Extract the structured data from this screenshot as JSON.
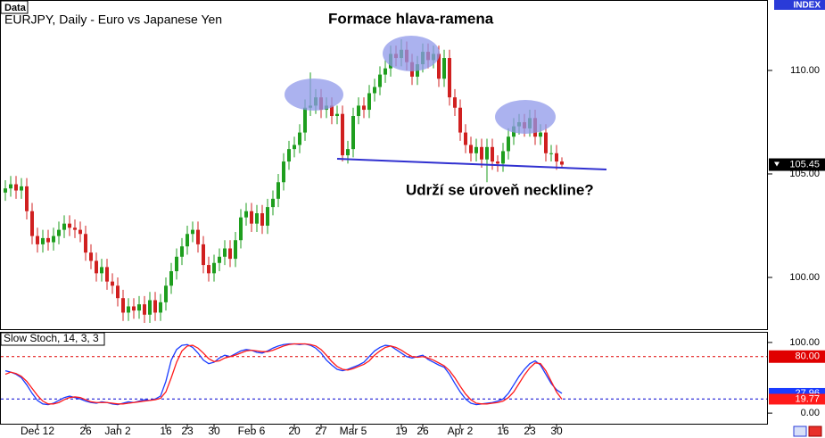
{
  "chart_data": [
    {
      "type": "candlestick",
      "panel_label": "Data",
      "title": "EURJPY, Daily - Euro vs Japanese Yen",
      "axis_badge": "INDEX",
      "annotations": [
        "Formace hlava-ramena",
        "Udrží se úroveň neckline?"
      ],
      "up_color": "#1e9e1e",
      "down_color": "#d02020",
      "ylim": [
        97.5,
        113.36
      ],
      "yticks": [
        {
          "value": 110,
          "label": "110.00"
        },
        {
          "value": 105,
          "label": "105.00"
        },
        {
          "value": 100,
          "label": "100.00"
        }
      ],
      "xticks": [
        {
          "value": 6,
          "label": "Dec 12"
        },
        {
          "value": 15,
          "label": "26"
        },
        {
          "value": 21,
          "label": "Jan 2"
        },
        {
          "value": 30,
          "label": "16"
        },
        {
          "value": 34,
          "label": "23"
        },
        {
          "value": 39,
          "label": "30"
        },
        {
          "value": 46,
          "label": "Feb 6"
        },
        {
          "value": 54,
          "label": "20"
        },
        {
          "value": 59,
          "label": "27"
        },
        {
          "value": 65,
          "label": "Mar 5"
        },
        {
          "value": 74,
          "label": "19"
        },
        {
          "value": 78,
          "label": "26"
        },
        {
          "value": 85,
          "label": "Apr 2"
        },
        {
          "value": 93,
          "label": "16"
        },
        {
          "value": 98,
          "label": "23"
        },
        {
          "value": 103,
          "label": "30"
        }
      ],
      "open": [
        104.1,
        104.3,
        104.5,
        104.2,
        104.4,
        103.2,
        102.0,
        101.6,
        101.9,
        101.7,
        102.0,
        102.3,
        102.6,
        102.4,
        102.3,
        102.1,
        101.2,
        100.8,
        100.2,
        100.5,
        99.8,
        99.6,
        99.0,
        98.3,
        98.6,
        98.4,
        98.7,
        98.2,
        98.9,
        98.3,
        98.8,
        99.6,
        100.3,
        101.0,
        101.5,
        102.1,
        102.3,
        101.6,
        100.6,
        100.2,
        100.7,
        101.0,
        101.4,
        100.9,
        101.8,
        102.9,
        103.2,
        102.6,
        103.1,
        102.5,
        103.4,
        103.8,
        104.6,
        105.6,
        106.2,
        106.4,
        107.0,
        108.2,
        108.3,
        108.7,
        108.1,
        108.3,
        107.8,
        107.9,
        105.9,
        106.2,
        107.8,
        108.3,
        108.1,
        108.9,
        109.2,
        109.8,
        110.1,
        110.8,
        110.6,
        111.0,
        110.4,
        109.7,
        110.3,
        110.9,
        110.5,
        110.8,
        109.6,
        110.6,
        108.7,
        108.2,
        107.0,
        106.4,
        106.0,
        106.3,
        105.7,
        106.3,
        105.6,
        105.5,
        106.1,
        106.8,
        107.3,
        107.5,
        107.2,
        107.7,
        106.8,
        107.0,
        106.0,
        106.0,
        105.6
      ],
      "high": [
        104.7,
        104.9,
        104.9,
        104.8,
        104.8,
        103.6,
        102.4,
        102.3,
        102.3,
        102.4,
        102.7,
        103.0,
        103.0,
        102.8,
        102.7,
        102.5,
        101.6,
        101.2,
        100.9,
        100.9,
        100.2,
        100.0,
        99.4,
        99.0,
        99.0,
        99.1,
        99.1,
        99.3,
        99.3,
        99.2,
        100.0,
        100.7,
        101.4,
        101.9,
        102.5,
        102.7,
        102.7,
        102.0,
        101.0,
        101.1,
        101.4,
        101.8,
        101.8,
        102.2,
        103.3,
        103.6,
        103.6,
        103.5,
        103.5,
        103.8,
        104.2,
        105.0,
        106.0,
        106.6,
        106.8,
        107.4,
        108.6,
        109.9,
        109.1,
        109.1,
        108.7,
        108.7,
        108.3,
        108.3,
        106.6,
        108.2,
        108.7,
        108.7,
        109.3,
        109.6,
        110.2,
        110.5,
        111.2,
        111.2,
        111.5,
        111.4,
        110.8,
        110.7,
        111.3,
        111.3,
        111.2,
        111.2,
        111.0,
        111.0,
        109.1,
        108.6,
        107.4,
        106.8,
        106.7,
        106.7,
        106.7,
        106.7,
        105.9,
        106.5,
        107.2,
        107.7,
        107.9,
        107.9,
        108.1,
        108.1,
        107.4,
        107.4,
        106.4,
        106.4,
        105.8
      ],
      "low": [
        103.7,
        103.9,
        103.8,
        103.8,
        102.8,
        101.6,
        101.2,
        101.2,
        101.3,
        101.3,
        101.6,
        101.9,
        102.0,
        101.9,
        101.7,
        100.8,
        100.4,
        99.8,
        99.8,
        99.4,
        99.2,
        98.6,
        97.9,
        97.9,
        98.0,
        98.0,
        97.8,
        97.8,
        97.9,
        97.9,
        98.4,
        99.2,
        99.9,
        100.6,
        101.1,
        101.7,
        101.2,
        100.2,
        99.8,
        99.8,
        100.3,
        100.6,
        100.5,
        100.5,
        101.4,
        102.5,
        102.2,
        102.2,
        102.1,
        102.1,
        103.0,
        103.4,
        104.2,
        105.2,
        105.8,
        106.0,
        106.6,
        107.8,
        107.9,
        107.7,
        107.7,
        107.4,
        107.4,
        105.6,
        105.5,
        105.8,
        107.4,
        107.7,
        107.7,
        108.5,
        108.8,
        109.4,
        109.7,
        110.2,
        110.2,
        110.0,
        109.3,
        109.3,
        109.9,
        110.1,
        110.1,
        109.2,
        109.2,
        108.3,
        107.8,
        106.6,
        106.0,
        105.6,
        105.6,
        105.3,
        104.6,
        105.2,
        105.1,
        105.1,
        105.7,
        106.4,
        106.9,
        106.8,
        106.8,
        106.4,
        106.4,
        105.6,
        105.6,
        105.2,
        105.3
      ],
      "close": [
        104.3,
        104.5,
        104.2,
        104.4,
        103.2,
        102.0,
        101.6,
        101.9,
        101.7,
        102.0,
        102.3,
        102.6,
        102.4,
        102.3,
        102.1,
        101.2,
        100.8,
        100.2,
        100.5,
        99.8,
        99.6,
        99.0,
        98.3,
        98.6,
        98.4,
        98.7,
        98.2,
        98.9,
        98.3,
        98.8,
        99.6,
        100.3,
        101.0,
        101.5,
        102.1,
        102.3,
        101.6,
        100.6,
        100.2,
        100.7,
        101.0,
        101.4,
        100.9,
        101.8,
        102.9,
        103.2,
        102.6,
        103.1,
        102.5,
        103.4,
        103.8,
        104.6,
        105.6,
        106.2,
        106.4,
        107.0,
        108.2,
        108.3,
        108.7,
        108.1,
        108.3,
        107.8,
        107.9,
        105.9,
        106.2,
        107.8,
        108.3,
        108.1,
        108.9,
        109.2,
        109.8,
        110.1,
        110.8,
        110.6,
        111.0,
        110.4,
        109.7,
        110.3,
        110.9,
        110.5,
        110.8,
        109.6,
        110.6,
        108.7,
        108.2,
        107.0,
        106.4,
        106.0,
        106.3,
        105.7,
        106.3,
        105.6,
        105.5,
        106.1,
        106.8,
        107.3,
        107.5,
        107.2,
        107.7,
        106.8,
        107.0,
        106.0,
        106.0,
        105.6,
        105.45
      ]
    },
    {
      "type": "line",
      "title": "Slow Stoch, 14, 3, 3",
      "ylim": [
        -15,
        113.75
      ],
      "yticks": [
        {
          "value": 100,
          "label": "100.00"
        },
        {
          "value": 0,
          "label": "0.00"
        }
      ],
      "levels": [
        {
          "value": 80,
          "label": "80.00",
          "color": "#e00000"
        },
        {
          "value": 20,
          "color": "#0000d0"
        }
      ],
      "series": [
        {
          "color": "#1a3cff",
          "values": [
            60,
            58,
            55,
            50,
            40,
            28,
            18,
            13,
            12,
            14,
            18,
            22,
            24,
            22,
            20,
            17,
            15,
            14,
            16,
            15,
            13,
            12,
            14,
            16,
            15,
            17,
            19,
            18,
            20,
            24,
            45,
            75,
            90,
            96,
            97,
            93,
            85,
            75,
            70,
            72,
            78,
            82,
            80,
            84,
            88,
            90,
            89,
            86,
            85,
            88,
            92,
            95,
            97,
            98,
            98,
            97,
            98,
            96,
            92,
            85,
            75,
            68,
            62,
            60,
            62,
            65,
            68,
            72,
            80,
            88,
            93,
            96,
            95,
            90,
            85,
            80,
            78,
            80,
            82,
            76,
            72,
            68,
            65,
            55,
            42,
            30,
            20,
            14,
            12,
            13,
            14,
            15,
            17,
            20,
            28,
            40,
            52,
            62,
            70,
            74,
            68,
            55,
            42,
            33,
            27.96
          ]
        },
        {
          "color": "#ff1a1a",
          "values": [
            55,
            58,
            56,
            52,
            45,
            35,
            25,
            17,
            13,
            13,
            15,
            19,
            22,
            23,
            22,
            19,
            16,
            15,
            15,
            15,
            14,
            13,
            13,
            14,
            15,
            16,
            17,
            18,
            19,
            21,
            30,
            50,
            72,
            88,
            95,
            96,
            92,
            85,
            77,
            73,
            74,
            78,
            80,
            82,
            85,
            88,
            89,
            88,
            87,
            87,
            89,
            92,
            95,
            97,
            98,
            98,
            98,
            97,
            95,
            90,
            82,
            73,
            66,
            62,
            61,
            63,
            66,
            69,
            74,
            82,
            88,
            93,
            95,
            93,
            89,
            84,
            80,
            79,
            80,
            78,
            75,
            71,
            67,
            60,
            50,
            38,
            27,
            19,
            14,
            13,
            13,
            14,
            15,
            17,
            22,
            30,
            42,
            54,
            64,
            71,
            70,
            60,
            45,
            30,
            19.77
          ]
        }
      ]
    }
  ]
}
